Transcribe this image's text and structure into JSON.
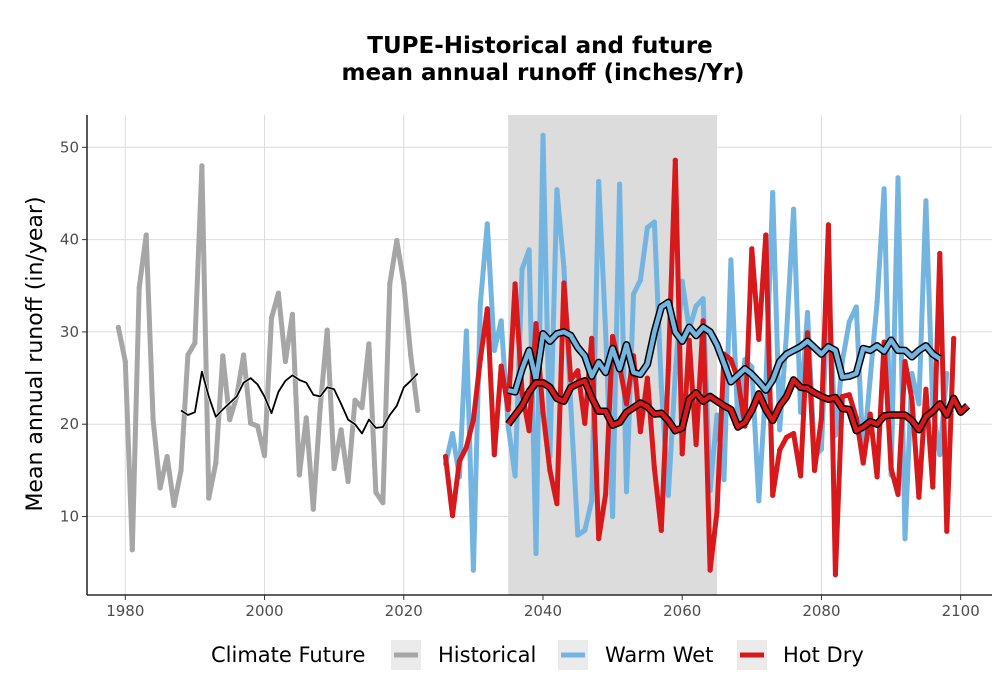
{
  "chart_data": {
    "type": "line",
    "title_line1": "TUPE-Historical and future",
    "title_line2": "mean annual runoff (inches/Yr)",
    "xlabel": "",
    "ylabel": "Mean annual runoff (in/year)",
    "xlim": [
      1974.5,
      2104.5
    ],
    "ylim": [
      1.5,
      53.5
    ],
    "xticks": [
      1980,
      2000,
      2020,
      2040,
      2060,
      2080,
      2100
    ],
    "yticks": [
      10,
      20,
      30,
      40,
      50
    ],
    "shaded_period": [
      2035,
      2065
    ],
    "grid": true,
    "legend_position": "bottom",
    "legend_title": "Climate Future",
    "colors": {
      "Historical": "#a6a6a6",
      "Warm Wet": "#73b5e0",
      "Hot Dry": "#d7191c",
      "shade": "#dcdcdc",
      "smooth_outline": "#000000"
    },
    "series": [
      {
        "name": "Historical",
        "x_start": 1979,
        "values": [
          30.5,
          26.8,
          6.4,
          34.8,
          40.5,
          20.5,
          13.1,
          16.5,
          11.2,
          15.0,
          27.5,
          28.8,
          48.0,
          12.0,
          15.8,
          27.4,
          20.5,
          23.0,
          27.5,
          20.1,
          19.8,
          16.6,
          31.5,
          34.2,
          26.8,
          31.9,
          14.5,
          20.7,
          10.8,
          21.8,
          30.2,
          15.2,
          19.4,
          13.8,
          22.6,
          21.8,
          28.7,
          12.6,
          11.5,
          35.2,
          39.9,
          35.3,
          27.5,
          21.5
        ]
      },
      {
        "name": "Warm Wet",
        "x_start": 2026,
        "values": [
          15.7,
          19.0,
          14.3,
          30.1,
          4.2,
          33.0,
          41.7,
          28.0,
          31.2,
          19.8,
          14.4,
          36.8,
          38.9,
          6.0,
          51.3,
          16.5,
          45.4,
          37.0,
          22.0,
          8.0,
          8.5,
          11.7,
          46.3,
          30.1,
          10.0,
          46.0,
          12.7,
          34.1,
          35.6,
          41.3,
          41.9,
          24.1,
          12.3,
          25.5,
          35.5,
          30.3,
          32.8,
          33.6,
          12.8,
          21.0,
          14.0,
          37.8,
          19.9,
          27.0,
          26.2,
          11.7,
          24.1,
          45.1,
          19.4,
          30.0,
          43.3,
          21.3,
          32.1,
          16.5,
          17.3,
          35.4,
          18.8,
          26.8,
          31.1,
          32.7,
          16.5,
          25.0,
          33.2,
          45.5,
          14.5,
          46.7,
          7.6,
          25.5,
          22.2,
          44.2,
          21.7,
          16.7,
          25.5
        ]
      },
      {
        "name": "Hot Dry",
        "x_start": 2026,
        "values": [
          16.5,
          10.1,
          16.0,
          17.5,
          20.5,
          27.0,
          32.5,
          16.7,
          26.3,
          21.6,
          35.2,
          23.4,
          19.3,
          30.9,
          21.3,
          15.0,
          11.4,
          35.3,
          24.8,
          25.8,
          20.1,
          29.3,
          7.6,
          12.4,
          29.5,
          26.3,
          22.2,
          27.4,
          19.2,
          25.0,
          15.2,
          8.5,
          25.9,
          48.6,
          16.8,
          29.1,
          17.8,
          31.2,
          4.2,
          10.5,
          27.6,
          27.0,
          24.9,
          19.8,
          39.0,
          29.2,
          40.5,
          12.3,
          17.2,
          18.6,
          19.0,
          14.4,
          29.9,
          15.0,
          20.6,
          41.6,
          3.7,
          23.0,
          23.2,
          20.7,
          15.8,
          21.1,
          14.3,
          28.9,
          15.2,
          12.4,
          26.8,
          22.7,
          12.1,
          23.8,
          13.2,
          38.5,
          8.4,
          29.3
        ]
      },
      {
        "name": "Historical smoothed",
        "x_start": 1988,
        "values": [
          21.5,
          21.0,
          21.3,
          25.7,
          23.0,
          20.8,
          21.6,
          22.3,
          23.0,
          24.5,
          25.0,
          24.3,
          23.0,
          21.2,
          23.5,
          24.7,
          25.3,
          24.8,
          24.5,
          23.2,
          23.0,
          24.0,
          23.8,
          22.2,
          20.5,
          20.0,
          19.0,
          20.5,
          19.6,
          19.7,
          21.0,
          22.0,
          24.0,
          24.7,
          25.5
        ]
      },
      {
        "name": "Warm Wet smoothed",
        "x_start": 2035,
        "values": [
          23.7,
          23.5,
          26.0,
          28.0,
          24.8,
          29.8,
          29.0,
          29.8,
          30.0,
          29.6,
          28.3,
          27.4,
          25.2,
          26.7,
          25.6,
          28.2,
          26.0,
          28.6,
          25.6,
          25.4,
          26.5,
          30.0,
          32.7,
          33.2,
          30.0,
          29.0,
          30.5,
          29.6,
          30.5,
          30.0,
          28.6,
          26.6,
          24.6,
          25.3,
          26.0,
          25.4,
          24.6,
          23.7,
          24.8,
          26.8,
          27.6,
          28.0,
          28.4,
          29.0,
          28.3,
          27.6,
          28.4,
          28.0,
          25.1,
          25.2,
          25.5,
          28.2,
          28.0,
          28.5,
          27.9,
          29.1,
          28.0,
          28.0,
          27.3,
          28.0,
          28.5,
          27.6,
          27.1
        ]
      },
      {
        "name": "Hot Dry smoothed",
        "x_start": 2035,
        "values": [
          20.0,
          21.0,
          22.0,
          23.5,
          24.5,
          24.5,
          24.0,
          22.8,
          22.5,
          24.0,
          24.4,
          24.7,
          22.9,
          21.4,
          21.4,
          19.9,
          20.2,
          21.3,
          21.8,
          22.3,
          21.9,
          21.1,
          21.2,
          20.4,
          19.3,
          19.6,
          22.7,
          23.4,
          22.5,
          23.0,
          22.5,
          22.0,
          21.6,
          19.7,
          20.2,
          21.5,
          23.3,
          21.6,
          20.4,
          22.0,
          23.0,
          24.8,
          24.0,
          23.9,
          23.4,
          23.0,
          22.7,
          22.9,
          21.7,
          21.6,
          19.3,
          19.7,
          20.3,
          20.0,
          20.9,
          21.0,
          21.0,
          21.0,
          20.4,
          19.4,
          20.8,
          21.4,
          22.2,
          21.0,
          22.8,
          21.3,
          22.0
        ]
      }
    ]
  }
}
